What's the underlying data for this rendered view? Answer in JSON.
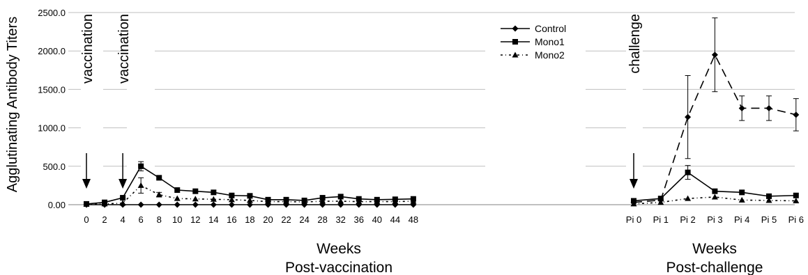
{
  "chart_data": {
    "type": "line",
    "ylabel": "Agglutinating Antibody Titers",
    "ylim": [
      0,
      2500
    ],
    "yticks": [
      "0.00",
      "500.0",
      "1000.0",
      "1500.0",
      "2000.0",
      "2500.0"
    ],
    "grid": true,
    "legend_position": "top-center",
    "legend": [
      {
        "name": "Control",
        "marker": "diamond",
        "dash": "solid"
      },
      {
        "name": "Mono1",
        "marker": "square",
        "dash": "solid"
      },
      {
        "name": "Mono2",
        "marker": "triangle",
        "dash": "dashdot"
      }
    ],
    "panels": [
      {
        "id": "post-vaccination",
        "xlabel_line1": "Weeks",
        "xlabel_line2": "Post-vaccination",
        "categories": [
          "0",
          "2",
          "4",
          "6",
          "8",
          "10",
          "12",
          "14",
          "16",
          "18",
          "20",
          "22",
          "24",
          "28",
          "32",
          "36",
          "40",
          "44",
          "48"
        ],
        "series": [
          {
            "name": "Control",
            "values": [
              0,
              0,
              0,
              0,
              0,
              0,
              0,
              0,
              0,
              0,
              0,
              0,
              0,
              0,
              0,
              0,
              0,
              0,
              0
            ]
          },
          {
            "name": "Mono1",
            "values": [
              10,
              30,
              90,
              500,
              350,
              190,
              175,
              160,
              120,
              115,
              65,
              65,
              55,
              90,
              105,
              75,
              65,
              70,
              75
            ],
            "errors": [
              0,
              0,
              0,
              60,
              0,
              0,
              0,
              0,
              0,
              0,
              0,
              0,
              0,
              0,
              0,
              0,
              0,
              0,
              0
            ]
          },
          {
            "name": "Mono2",
            "values": [
              5,
              10,
              20,
              250,
              130,
              80,
              75,
              70,
              65,
              55,
              40,
              40,
              35,
              45,
              45,
              40,
              40,
              40,
              45
            ],
            "errors": [
              0,
              0,
              0,
              100,
              30,
              0,
              0,
              0,
              0,
              0,
              0,
              0,
              0,
              0,
              0,
              0,
              0,
              0,
              0
            ]
          }
        ],
        "annotations": [
          {
            "text": "vaccination",
            "at": "0"
          },
          {
            "text": "vaccination",
            "at": "4"
          }
        ]
      },
      {
        "id": "post-challenge",
        "xlabel_line1": "Weeks",
        "xlabel_line2": "Post-challenge",
        "categories": [
          "Pi 0",
          "Pi 1",
          "Pi 2",
          "Pi 3",
          "Pi 4",
          "Pi 5",
          "Pi 6"
        ],
        "series": [
          {
            "name": "Control",
            "dash": "dashed",
            "values": [
              30,
              60,
              1140,
              1950,
              1255,
              1255,
              1170
            ],
            "errors": [
              0,
              0,
              540,
              480,
              160,
              160,
              210
            ]
          },
          {
            "name": "Mono1",
            "values": [
              50,
              80,
              420,
              175,
              160,
              110,
              120
            ],
            "errors": [
              0,
              0,
              90,
              0,
              0,
              0,
              0
            ]
          },
          {
            "name": "Mono2",
            "values": [
              10,
              30,
              80,
              100,
              60,
              55,
              50
            ],
            "errors": [
              0,
              0,
              0,
              0,
              0,
              0,
              0
            ]
          }
        ],
        "annotations": [
          {
            "text": "challenge",
            "at": "Pi 0"
          }
        ]
      }
    ]
  }
}
